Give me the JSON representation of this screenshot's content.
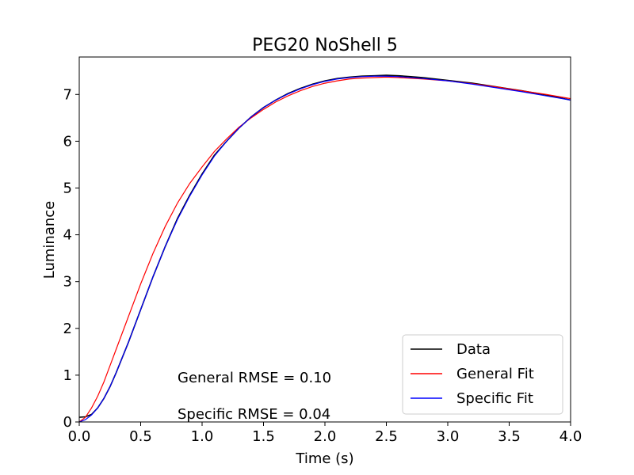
{
  "chart_data": {
    "type": "line",
    "title": "PEG20 NoShell 5",
    "xlabel": "Time (s)",
    "ylabel": "Luminance",
    "xlim": [
      0.0,
      4.0
    ],
    "ylim": [
      0.0,
      7.8
    ],
    "xticks": [
      0.0,
      0.5,
      1.0,
      1.5,
      2.0,
      2.5,
      3.0,
      3.5,
      4.0
    ],
    "xtick_labels": [
      "0.0",
      "0.5",
      "1.0",
      "1.5",
      "2.0",
      "2.5",
      "3.0",
      "3.5",
      "4.0"
    ],
    "yticks": [
      0,
      1,
      2,
      3,
      4,
      5,
      6,
      7
    ],
    "ytick_labels": [
      "0",
      "1",
      "2",
      "3",
      "4",
      "5",
      "6",
      "7"
    ],
    "grid": false,
    "legend_position": "lower-right",
    "series": [
      {
        "name": "Data",
        "color": "#000000",
        "x": [
          0.0,
          0.05,
          0.1,
          0.15,
          0.2,
          0.25,
          0.3,
          0.4,
          0.5,
          0.6,
          0.7,
          0.8,
          0.9,
          1.0,
          1.1,
          1.2,
          1.3,
          1.4,
          1.5,
          1.6,
          1.7,
          1.8,
          1.9,
          2.0,
          2.1,
          2.2,
          2.3,
          2.4,
          2.5,
          2.6,
          2.7,
          2.8,
          2.9,
          3.0,
          3.2,
          3.4,
          3.6,
          3.8,
          4.0
        ],
        "y": [
          0.1,
          0.11,
          0.16,
          0.3,
          0.5,
          0.75,
          1.05,
          1.7,
          2.4,
          3.1,
          3.75,
          4.35,
          4.85,
          5.3,
          5.7,
          6.0,
          6.28,
          6.52,
          6.72,
          6.88,
          7.02,
          7.13,
          7.22,
          7.29,
          7.34,
          7.37,
          7.39,
          7.4,
          7.41,
          7.4,
          7.38,
          7.36,
          7.33,
          7.3,
          7.24,
          7.16,
          7.08,
          6.99,
          6.88
        ]
      },
      {
        "name": "General Fit",
        "color": "#ff0000",
        "x": [
          0.0,
          0.05,
          0.1,
          0.15,
          0.2,
          0.25,
          0.3,
          0.4,
          0.5,
          0.6,
          0.7,
          0.8,
          0.9,
          1.0,
          1.1,
          1.2,
          1.3,
          1.4,
          1.5,
          1.6,
          1.7,
          1.8,
          1.9,
          2.0,
          2.1,
          2.2,
          2.3,
          2.4,
          2.5,
          2.6,
          2.8,
          3.0,
          3.2,
          3.4,
          3.6,
          3.8,
          4.0
        ],
        "y": [
          0.0,
          0.1,
          0.3,
          0.55,
          0.85,
          1.2,
          1.55,
          2.25,
          2.95,
          3.6,
          4.18,
          4.68,
          5.1,
          5.45,
          5.78,
          6.05,
          6.3,
          6.5,
          6.68,
          6.84,
          6.97,
          7.08,
          7.17,
          7.24,
          7.29,
          7.33,
          7.35,
          7.36,
          7.37,
          7.36,
          7.33,
          7.29,
          7.23,
          7.16,
          7.08,
          7.0,
          6.91
        ]
      },
      {
        "name": "Specific Fit",
        "color": "#0000ff",
        "x": [
          0.0,
          0.05,
          0.1,
          0.15,
          0.2,
          0.25,
          0.3,
          0.4,
          0.5,
          0.6,
          0.7,
          0.8,
          0.9,
          1.0,
          1.1,
          1.2,
          1.3,
          1.4,
          1.5,
          1.6,
          1.7,
          1.8,
          1.9,
          2.0,
          2.1,
          2.2,
          2.3,
          2.4,
          2.5,
          2.6,
          2.8,
          3.0,
          3.2,
          3.4,
          3.6,
          3.8,
          4.0
        ],
        "y": [
          0.0,
          0.05,
          0.15,
          0.3,
          0.5,
          0.75,
          1.05,
          1.7,
          2.4,
          3.1,
          3.75,
          4.33,
          4.83,
          5.28,
          5.68,
          6.0,
          6.28,
          6.52,
          6.72,
          6.88,
          7.01,
          7.12,
          7.21,
          7.28,
          7.33,
          7.36,
          7.38,
          7.39,
          7.39,
          7.38,
          7.34,
          7.29,
          7.22,
          7.14,
          7.06,
          6.97,
          6.88
        ]
      }
    ],
    "annotations": [
      {
        "text": "General RMSE = 0.10",
        "x": 0.8,
        "y": 0.85
      },
      {
        "text": "Specific RMSE = 0.04",
        "x": 0.8,
        "y": 0.07
      }
    ]
  }
}
